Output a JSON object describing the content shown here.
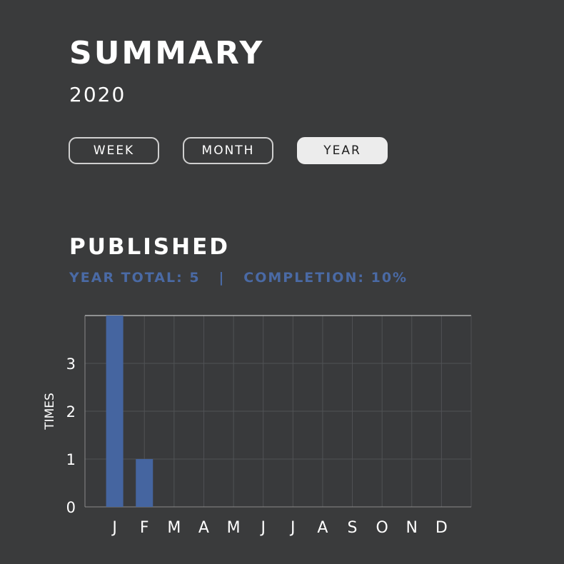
{
  "header": {
    "title": "SUMMARY",
    "year": "2020"
  },
  "period_tabs": [
    {
      "label": "WEEK",
      "active": false
    },
    {
      "label": "MONTH",
      "active": false
    },
    {
      "label": "YEAR",
      "active": true
    }
  ],
  "section": {
    "title": "PUBLISHED",
    "year_total_label": "YEAR TOTAL:",
    "year_total_value": "5",
    "separator": "|",
    "completion_label": "COMPLETION:",
    "completion_value": "10%"
  },
  "colors": {
    "background": "#3a3b3c",
    "accent": "#4a6aa5",
    "bar": "#4565a0",
    "text": "#ffffff"
  },
  "chart_data": {
    "type": "bar",
    "categories": [
      "J",
      "F",
      "M",
      "A",
      "M",
      "J",
      "J",
      "A",
      "S",
      "O",
      "N",
      "D"
    ],
    "values": [
      4,
      1,
      0,
      0,
      0,
      0,
      0,
      0,
      0,
      0,
      0,
      0
    ],
    "ylabel": "TIMES",
    "xlabel": "",
    "ylim": [
      0,
      4
    ],
    "yticks": [
      0,
      1,
      2,
      3
    ],
    "grid": true
  }
}
